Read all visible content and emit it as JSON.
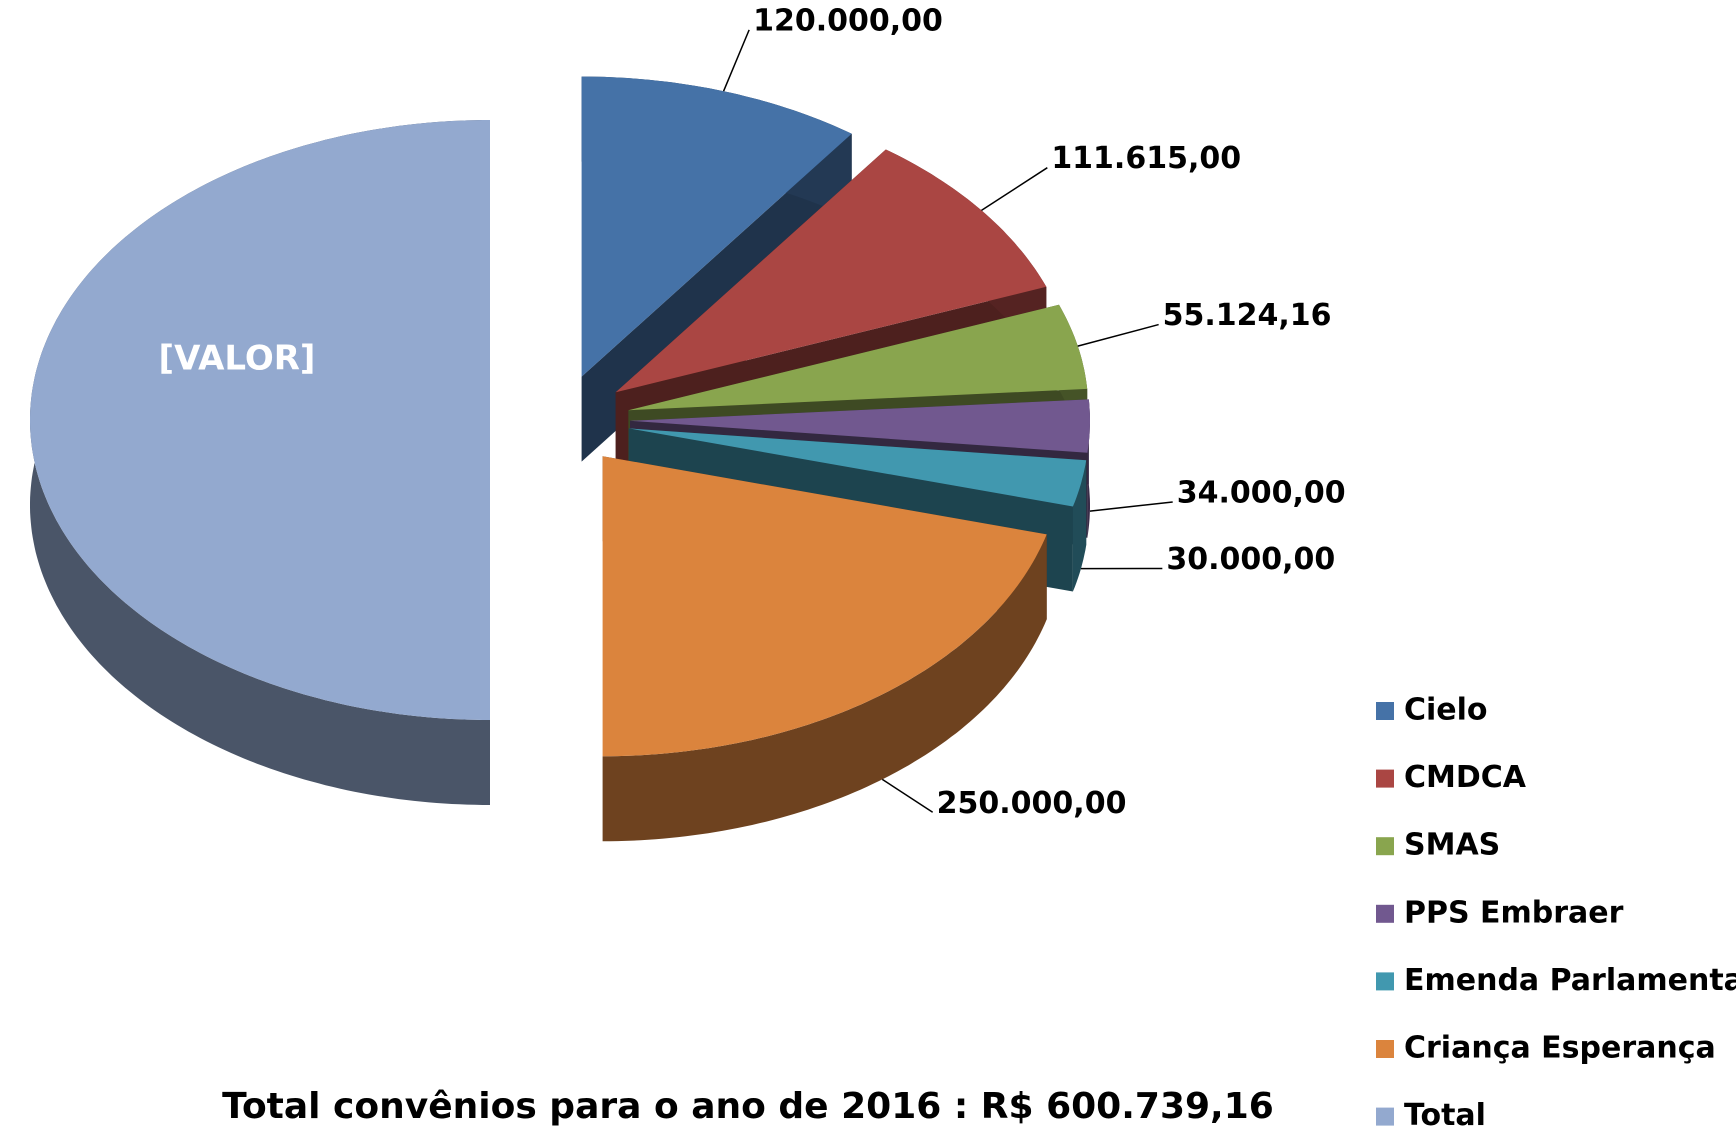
{
  "chart_data": {
    "type": "pie3d",
    "title": "Total convênios para o ano de 2016 : R$ 600.739,16",
    "categories": [
      "Cielo",
      "CMDCA",
      "SMAS",
      "PPS Embraer",
      "Emenda Parlamentar",
      "Criança Esperança",
      "Total"
    ],
    "values": [
      120000,
      111615,
      55124.16,
      34000,
      30000,
      250000,
      600739.16
    ],
    "value_labels": [
      "120.000,00",
      "111.615,00",
      "55.124,16",
      "34.000,00",
      "30.000,00",
      "250.000,00",
      "[VALOR]"
    ],
    "colors": [
      "#4572a7",
      "#aa4643",
      "#89a54e",
      "#71588f",
      "#4198af",
      "#db843d",
      "#93a9cf"
    ],
    "legend": "right"
  }
}
